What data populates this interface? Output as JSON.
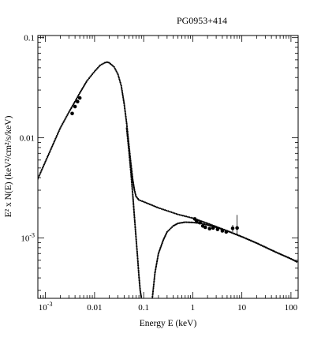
{
  "chart_data": {
    "type": "scatter",
    "title": "PG0953+414",
    "xlabel": "Energy E (keV)",
    "ylabel": "E² x N(E) (keV²/cm²/s/keV)",
    "x_scale": "log",
    "y_scale": "log",
    "xlim": [
      0.0007,
      140
    ],
    "ylim": [
      0.00025,
      0.105
    ],
    "x_ticks": [
      {
        "value": 0.001,
        "label": "10",
        "sup": "-3"
      },
      {
        "value": 0.01,
        "label": "0.01",
        "sup": ""
      },
      {
        "value": 0.1,
        "label": "0.1",
        "sup": ""
      },
      {
        "value": 1,
        "label": "1",
        "sup": ""
      },
      {
        "value": 10,
        "label": "10",
        "sup": ""
      },
      {
        "value": 100,
        "label": "100",
        "sup": ""
      }
    ],
    "y_ticks": [
      {
        "value": 0.001,
        "label": "10",
        "sup": "-3"
      },
      {
        "value": 0.01,
        "label": "0.01",
        "sup": ""
      },
      {
        "value": 0.1,
        "label": "0.1",
        "sup": ""
      }
    ],
    "grid": false,
    "legend": "none",
    "series": [
      {
        "style": "dotted-line",
        "points": [
          [
            0.0007,
            0.0039
          ],
          [
            0.001,
            0.0058
          ],
          [
            0.002,
            0.0125
          ],
          [
            0.003,
            0.018
          ],
          [
            0.004,
            0.023
          ],
          [
            0.005,
            0.028
          ],
          [
            0.007,
            0.037
          ],
          [
            0.01,
            0.046
          ],
          [
            0.013,
            0.053
          ],
          [
            0.016,
            0.056
          ],
          [
            0.018,
            0.057
          ],
          [
            0.02,
            0.056
          ],
          [
            0.025,
            0.051
          ],
          [
            0.03,
            0.043
          ],
          [
            0.035,
            0.033
          ],
          [
            0.04,
            0.022
          ],
          [
            0.045,
            0.014
          ],
          [
            0.05,
            0.0085
          ],
          [
            0.055,
            0.0055
          ],
          [
            0.06,
            0.0038
          ],
          [
            0.065,
            0.003
          ],
          [
            0.07,
            0.0026
          ],
          [
            0.08,
            0.0024
          ],
          [
            0.1,
            0.0023
          ],
          [
            0.2,
            0.002
          ],
          [
            0.5,
            0.00172
          ],
          [
            1,
            0.00158
          ],
          [
            2,
            0.0014
          ],
          [
            5,
            0.00118
          ],
          [
            10,
            0.00103
          ],
          [
            20,
            0.00089
          ],
          [
            50,
            0.00072
          ],
          [
            100,
            0.00062
          ],
          [
            140,
            0.00057
          ]
        ]
      },
      {
        "style": "dotted-line",
        "points": [
          [
            0.045,
            0.0125
          ],
          [
            0.05,
            0.0075
          ],
          [
            0.055,
            0.0045
          ],
          [
            0.06,
            0.0027
          ],
          [
            0.065,
            0.0016
          ],
          [
            0.07,
            0.001
          ],
          [
            0.075,
            0.00065
          ],
          [
            0.08,
            0.00042
          ],
          [
            0.085,
            0.0003
          ],
          [
            0.09,
            0.00025
          ]
        ]
      },
      {
        "style": "dotted-line",
        "points": [
          [
            0.15,
            0.00025
          ],
          [
            0.17,
            0.00045
          ],
          [
            0.2,
            0.0007
          ],
          [
            0.25,
            0.00095
          ],
          [
            0.3,
            0.00115
          ],
          [
            0.4,
            0.00132
          ],
          [
            0.5,
            0.0014
          ],
          [
            0.7,
            0.00144
          ],
          [
            1,
            0.00143
          ],
          [
            1.5,
            0.0014
          ],
          [
            2,
            0.00135
          ],
          [
            3,
            0.00128
          ],
          [
            5,
            0.00118
          ],
          [
            10,
            0.00103
          ],
          [
            20,
            0.00089
          ],
          [
            50,
            0.00072
          ],
          [
            100,
            0.00062
          ],
          [
            140,
            0.00057
          ]
        ]
      },
      {
        "style": "markers",
        "points": [
          [
            0.0035,
            0.0175
          ],
          [
            0.004,
            0.0205
          ],
          [
            0.0045,
            0.023
          ],
          [
            0.005,
            0.025
          ],
          [
            1.1,
            0.00155
          ],
          [
            1.2,
            0.00148
          ],
          [
            1.4,
            0.00142
          ],
          [
            1.6,
            0.00132
          ],
          [
            1.8,
            0.00128
          ],
          [
            2.2,
            0.00124
          ],
          [
            2.6,
            0.00126
          ],
          [
            3.2,
            0.00122
          ],
          [
            4,
            0.00118
          ],
          [
            4.8,
            0.00115
          ],
          [
            6.5,
            0.00125
          ],
          [
            8,
            0.00126
          ]
        ]
      }
    ],
    "error_bars": [
      {
        "x": 8,
        "y": 0.00126,
        "ylow": 0.00105,
        "yhigh": 0.0017
      },
      {
        "x": 6.5,
        "y": 0.00125,
        "ylow": 0.00115,
        "yhigh": 0.00135
      }
    ]
  }
}
